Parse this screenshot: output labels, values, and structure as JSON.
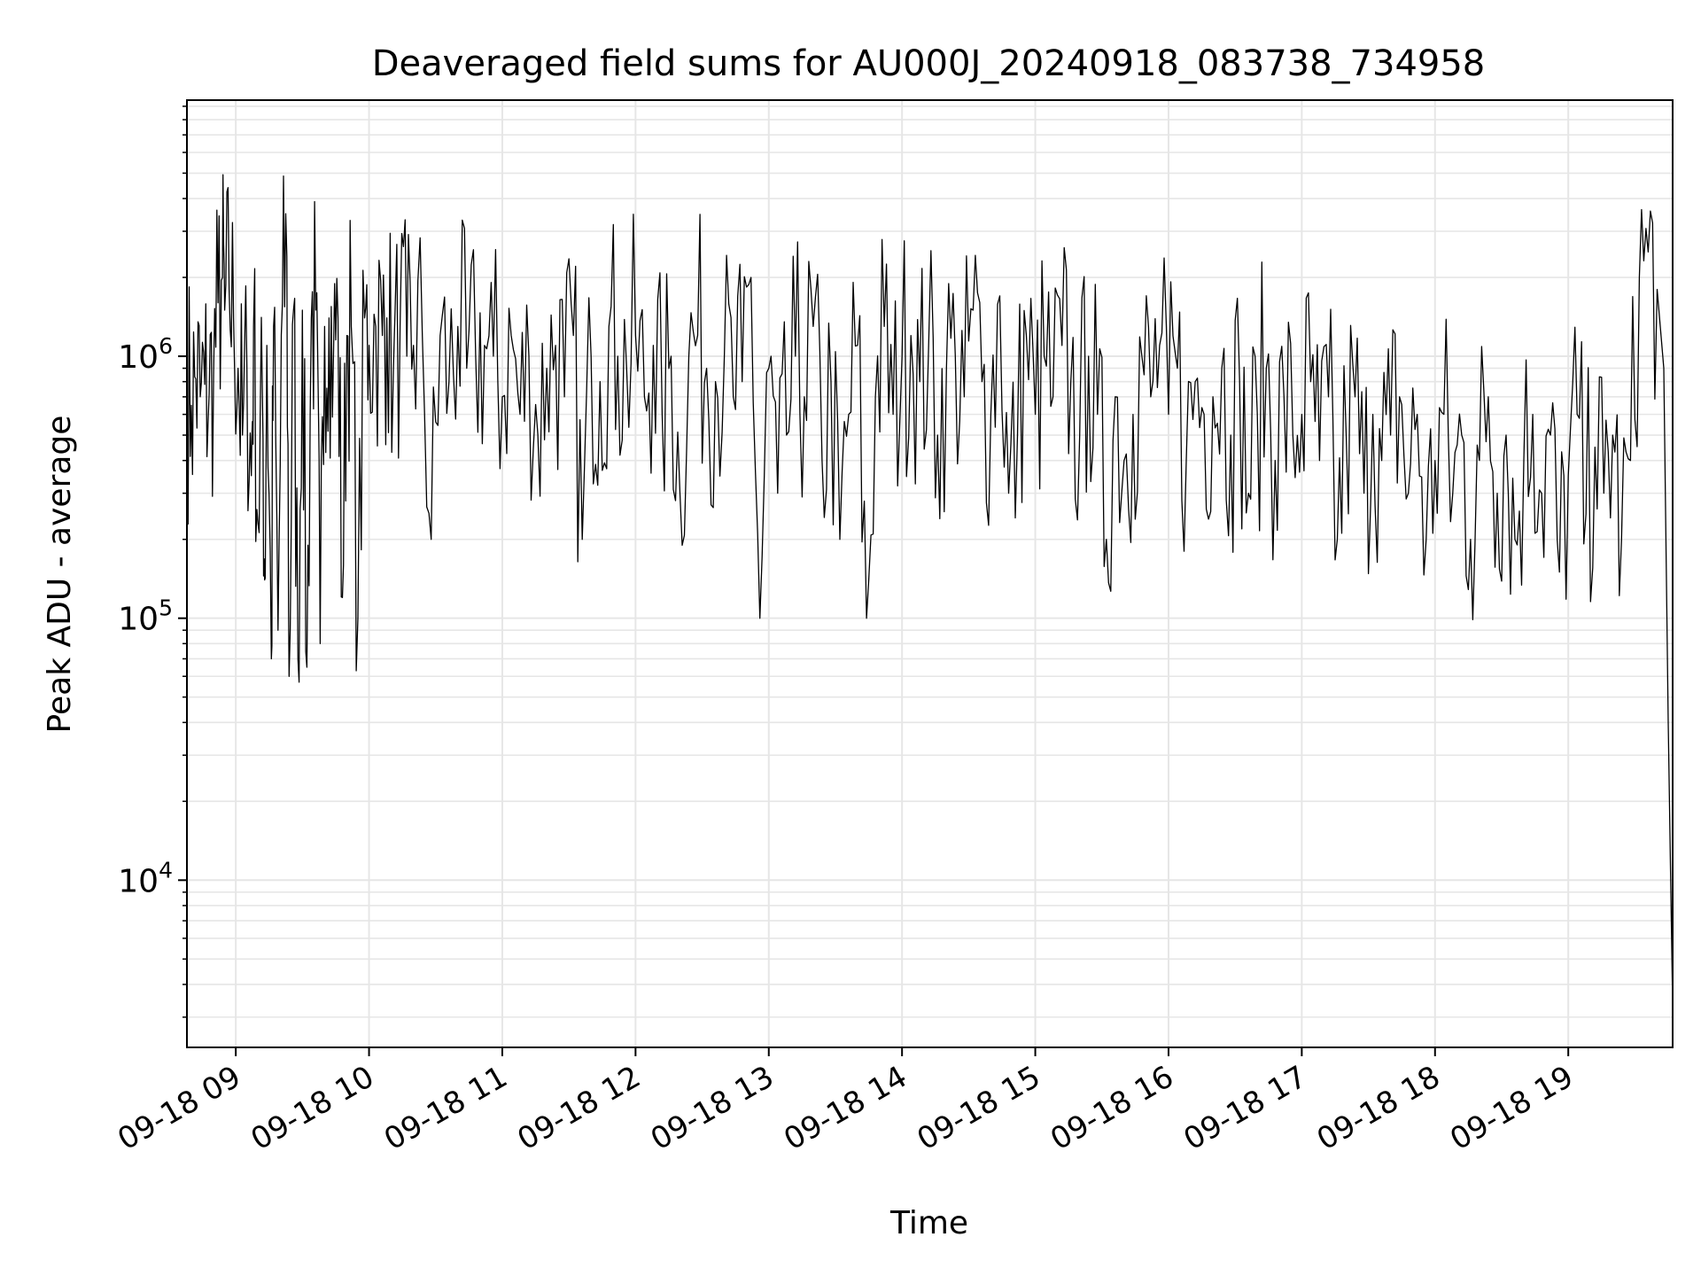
{
  "chart_data": {
    "type": "line",
    "title": "Deaveraged field sums for AU000J_20240918_083738_734958",
    "xlabel": "Time",
    "ylabel": "Peak ADU - average",
    "y_scale": "log",
    "xlim": [
      "2024-09-18 08:38",
      "2024-09-18 19:47"
    ],
    "ylim": [
      2300,
      9500000
    ],
    "grid": "major and minor, light gray",
    "line_color": "#000000",
    "x_tick_labels": [
      "09-18 09",
      "09-18 10",
      "09-18 11",
      "09-18 12",
      "09-18 13",
      "09-18 14",
      "09-18 15",
      "09-18 16",
      "09-18 17",
      "09-18 18",
      "09-18 19"
    ],
    "x_tick_values": [
      "2024-09-18 09:00",
      "2024-09-18 10:00",
      "2024-09-18 11:00",
      "2024-09-18 12:00",
      "2024-09-18 13:00",
      "2024-09-18 14:00",
      "2024-09-18 15:00",
      "2024-09-18 16:00",
      "2024-09-18 17:00",
      "2024-09-18 18:00",
      "2024-09-18 19:00"
    ],
    "y_ticks": [
      {
        "value": 10000,
        "base": "10",
        "exp": "4"
      },
      {
        "value": 100000,
        "base": "10",
        "exp": "5"
      },
      {
        "value": 1000000,
        "base": "10",
        "exp": "6"
      }
    ],
    "series": [
      {
        "x": [
          "08:38",
          "08:40",
          "08:42",
          "08:44",
          "08:46",
          "08:48",
          "08:50",
          "08:52",
          "08:54",
          "08:55",
          "08:57",
          "08:59",
          "09:01",
          "09:03",
          "09:05",
          "09:07",
          "09:08",
          "09:10",
          "09:12",
          "09:13",
          "09:14",
          "09:16",
          "09:17",
          "09:19",
          "09:21",
          "09:23",
          "09:24",
          "09:26",
          "09:28",
          "09:30",
          "09:32",
          "09:34",
          "09:36",
          "09:38",
          "09:40",
          "09:42",
          "09:44",
          "09:46",
          "09:48",
          "09:50",
          "09:52",
          "09:55",
          "09:58",
          "10:00",
          "10:03",
          "10:06",
          "10:08",
          "10:11",
          "10:14",
          "10:17",
          "10:20",
          "10:24",
          "10:28",
          "10:32",
          "10:36",
          "10:40",
          "10:44",
          "10:48",
          "10:52",
          "10:56",
          "11:00",
          "11:04",
          "11:08",
          "11:12",
          "11:16",
          "11:20",
          "11:24",
          "11:28",
          "11:32",
          "11:36",
          "11:40",
          "11:44",
          "11:48",
          "11:52",
          "11:56",
          "12:00",
          "12:04",
          "12:08",
          "12:12",
          "12:16",
          "12:20",
          "12:24",
          "12:28",
          "12:32",
          "12:36",
          "12:40",
          "12:44",
          "12:48",
          "12:52",
          "12:56",
          "13:00",
          "13:04",
          "13:08",
          "13:12",
          "13:16",
          "13:20",
          "13:24",
          "13:28",
          "13:32",
          "13:36",
          "13:40",
          "13:44",
          "13:48",
          "13:52",
          "13:56",
          "14:00",
          "14:04",
          "14:08",
          "14:12",
          "14:16",
          "14:20",
          "14:24",
          "14:28",
          "14:32",
          "14:36",
          "14:40",
          "14:44",
          "14:48",
          "14:52",
          "14:56",
          "15:00",
          "15:04",
          "15:08",
          "15:12",
          "15:16",
          "15:20",
          "15:24",
          "15:28",
          "15:32",
          "15:36",
          "15:40",
          "15:44",
          "15:48",
          "15:52",
          "15:56",
          "16:00",
          "16:04",
          "16:08",
          "16:12",
          "16:16",
          "16:20",
          "16:24",
          "16:28",
          "16:32",
          "16:36",
          "16:40",
          "16:44",
          "16:48",
          "16:52",
          "16:56",
          "17:00",
          "17:04",
          "17:08",
          "17:12",
          "17:16",
          "17:20",
          "17:24",
          "17:28",
          "17:32",
          "17:36",
          "17:40",
          "17:44",
          "17:48",
          "17:52",
          "17:56",
          "18:00",
          "18:04",
          "18:08",
          "18:12",
          "18:16",
          "18:20",
          "18:24",
          "18:28",
          "18:32",
          "18:36",
          "18:40",
          "18:44",
          "18:48",
          "18:52",
          "18:56",
          "19:00",
          "19:04",
          "19:08",
          "19:12",
          "19:16",
          "19:20",
          "19:24",
          "19:28",
          "19:32",
          "19:36",
          "19:40",
          "19:43",
          "19:45",
          "19:47"
        ],
        "y": [
          750000,
          650000,
          820000,
          700000,
          780000,
          720000,
          850000,
          1600000,
          2000000,
          1500000,
          1800000,
          1400000,
          900000,
          500000,
          900000,
          350000,
          1300000,
          230000,
          700000,
          140000,
          1100000,
          70000,
          1300000,
          90000,
          1600000,
          2400000,
          60000,
          1500000,
          70000,
          1500000,
          65000,
          1400000,
          1500000,
          80000,
          1300000,
          1400000,
          1000000,
          1400000,
          120000,
          1200000,
          1300000,
          100000,
          1400000,
          1100000,
          1300000,
          1200000,
          1400000,
          900000,
          1300000,
          1000000,
          1100000,
          1200000,
          200000,
          1200000,
          800000,
          1300000,
          900000,
          1000000,
          1100000,
          1000000,
          700000,
          1200000,
          600000,
          1000000,
          500000,
          900000,
          1100000,
          700000,
          1200000,
          200000,
          1000000,
          800000,
          1300000,
          1000000,
          900000,
          1200000,
          700000,
          1100000,
          600000,
          1000000,
          300000,
          1000000,
          1200000,
          900000,
          800000,
          1000000,
          700000,
          800000,
          2000000,
          100000,
          900000,
          300000,
          500000,
          1000000,
          700000,
          1300000,
          400000,
          800000,
          200000,
          600000,
          1100000,
          100000,
          700000,
          1300000,
          600000,
          1000000,
          1200000,
          800000,
          1100000,
          500000,
          900000,
          1000000,
          700000,
          1500000,
          800000,
          600000,
          1700000,
          300000,
          500000,
          1200000,
          600000,
          1000000,
          700000,
          1100000,
          800000,
          500000,
          1000000,
          600000,
          200000,
          700000,
          400000,
          600000,
          1000000,
          700000,
          1100000,
          600000,
          900000,
          400000,
          800000,
          600000,
          700000,
          900000,
          500000,
          800000,
          300000,
          600000,
          900000,
          400000,
          700000,
          500000,
          600000,
          800000,
          400000,
          700000,
          200000,
          500000,
          700000,
          300000,
          600000,
          400000,
          500000,
          700000,
          300000,
          600000,
          200000,
          400000,
          600000,
          300000,
          500000,
          200000,
          400000,
          700000,
          300000,
          500000,
          200000,
          400000,
          600000,
          300000,
          500000,
          150000,
          350000,
          600000,
          250000,
          450000,
          300000,
          500000,
          200000,
          400000,
          2000000,
          2500000,
          1800000,
          900000,
          40000,
          3300
        ]
      }
    ]
  }
}
